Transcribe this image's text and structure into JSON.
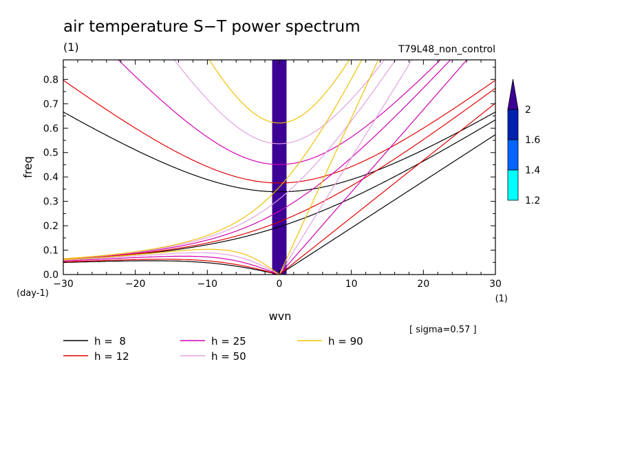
{
  "header": {
    "title": "air temperature S−T power spectrum",
    "units": "(1)",
    "run_name": "T79L48_non_control"
  },
  "footer": {
    "sigma_note": "[ sigma=0.57 ]"
  },
  "colorbar": {
    "levels": [
      "1.2",
      "1.4",
      "1.6",
      "2"
    ],
    "colors": [
      "#00ffff",
      "#0064ff",
      "#0020b0",
      "#3c0096"
    ]
  },
  "chart_data": {
    "type": "line",
    "title": "air temperature S−T power spectrum",
    "xlabel": "wvn",
    "ylabel": "freq",
    "x_unit": "(1)",
    "y_unit": "(day-1)",
    "xlim": [
      -30,
      30
    ],
    "ylim": [
      0,
      0.88
    ],
    "x_ticks": [
      "−30",
      "−20",
      "−10",
      "0",
      "10",
      "20",
      "30"
    ],
    "y_ticks": [
      "0.0",
      "0.1",
      "0.2",
      "0.3",
      "0.4",
      "0.5",
      "0.6",
      "0.7",
      "0.8"
    ],
    "legend_position": "bottom",
    "shaded_band": {
      "x_range": [
        -1,
        1
      ],
      "level": "2",
      "color": "#3c0096"
    },
    "series": [
      {
        "name": "h =  8",
        "h": 8,
        "color": "#000000"
      },
      {
        "name": "h = 12",
        "h": 12,
        "color": "#e00000"
      },
      {
        "name": "h = 25",
        "h": 25,
        "color": "#d000b0"
      },
      {
        "name": "h = 50",
        "h": 50,
        "color": "#e0a0e0"
      },
      {
        "name": "h = 90",
        "h": 90,
        "color": "#f0c000"
      }
    ]
  }
}
